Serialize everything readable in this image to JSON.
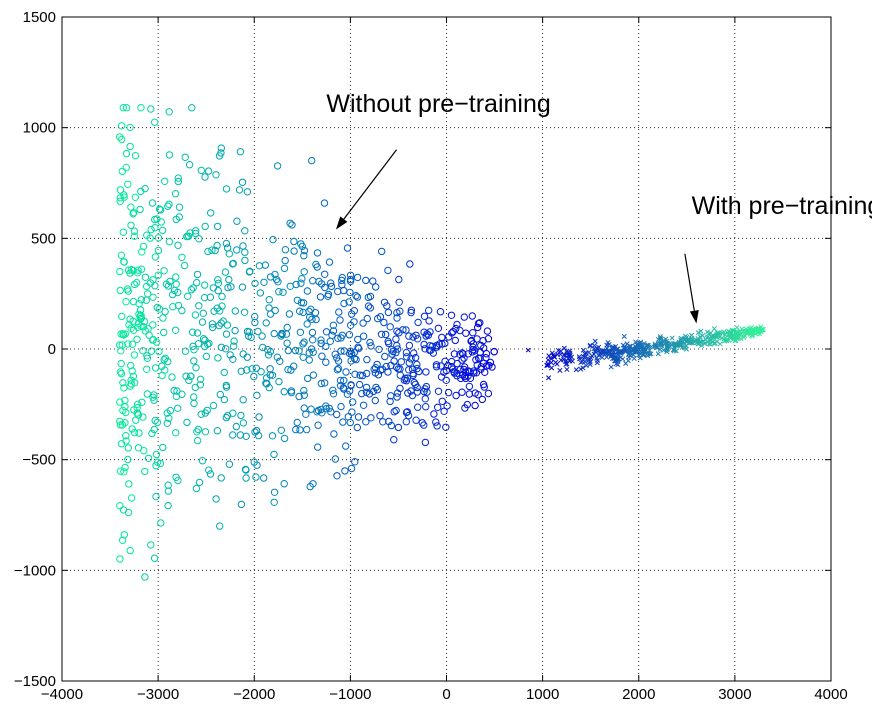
{
  "chart_data": {
    "type": "scatter",
    "title": "",
    "xlabel": "",
    "ylabel": "",
    "xlim": [
      -4000,
      4000
    ],
    "ylim": [
      -1500,
      1500
    ],
    "grid": true,
    "x_ticks": [
      -4000,
      -3000,
      -2000,
      -1000,
      0,
      1000,
      2000,
      3000,
      4000
    ],
    "y_ticks": [
      -1500,
      -1000,
      -500,
      0,
      500,
      1000,
      1500
    ],
    "x_tick_labels": [
      "−4000",
      "−3000",
      "−2000",
      "−1000",
      "0",
      "1000",
      "2000",
      "3000",
      "4000"
    ],
    "y_tick_labels": [
      "−1500",
      "−1000",
      "−500",
      "0",
      "500",
      "1000",
      "1500"
    ],
    "annotations": [
      {
        "text": "Without pre−training",
        "x": -1250,
        "y": 1070,
        "arrow_from": [
          -520,
          900
        ],
        "arrow_to": [
          -1150,
          540
        ]
      },
      {
        "text": "With pre−training",
        "x": 2550,
        "y": 610,
        "arrow_from": [
          2480,
          430
        ],
        "arrow_to": [
          2600,
          115
        ]
      }
    ],
    "series": [
      {
        "marker": "o",
        "color_start": "#00ee99",
        "color_end": "#0000dd",
        "x_range": [
          -3400,
          500
        ],
        "y_range": [
          -1030,
          1090
        ],
        "point_count": 900
      },
      {
        "marker": "x",
        "color_start": "#0000cc",
        "color_end": "#33ee99",
        "x_range": [
          850,
          3300
        ],
        "y_range": [
          -130,
          100
        ],
        "point_count": 450
      }
    ]
  }
}
